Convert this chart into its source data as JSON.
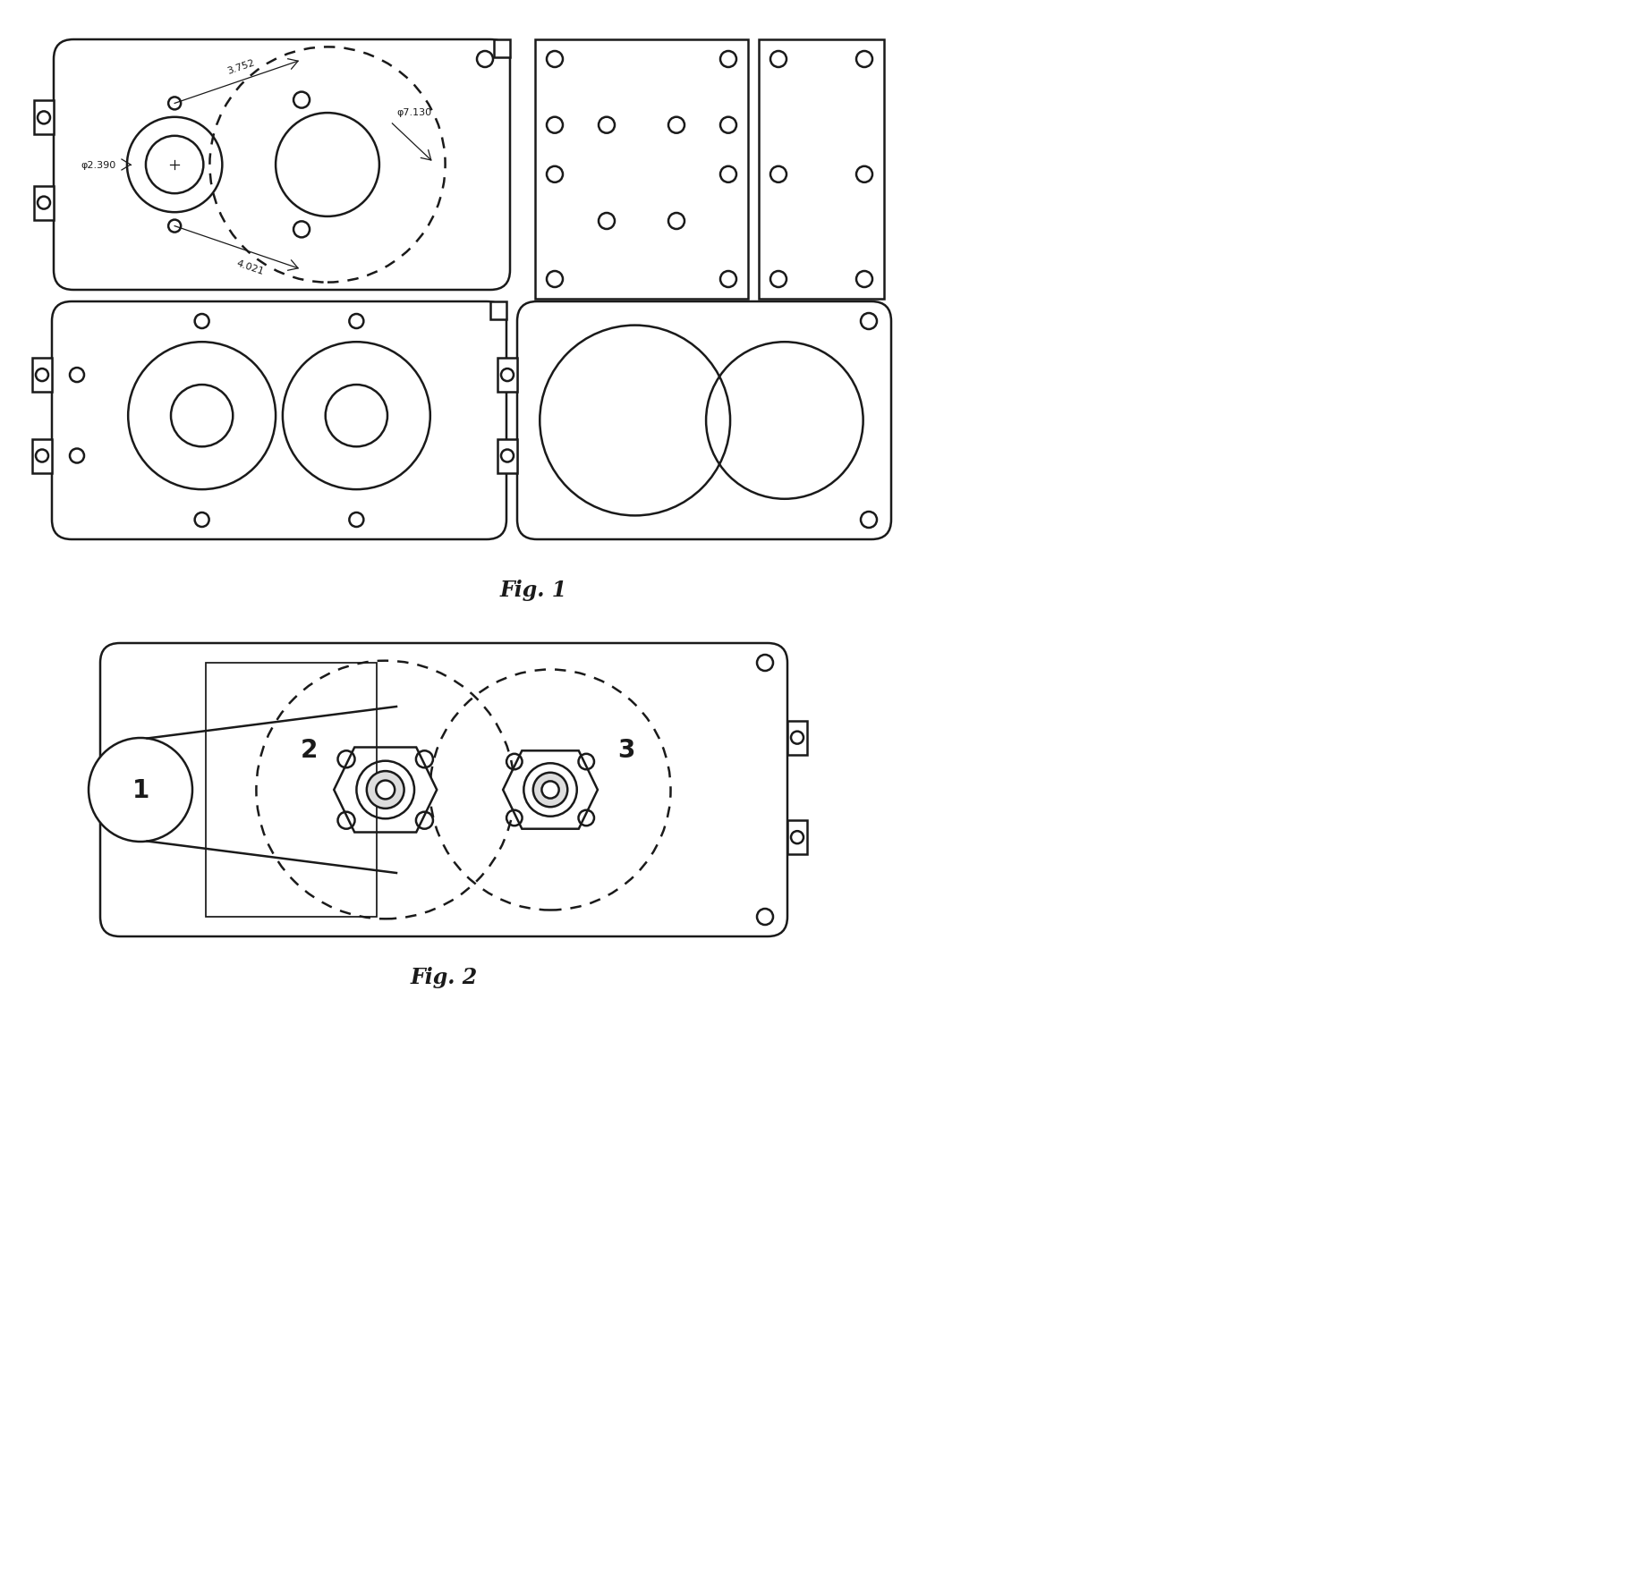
{
  "fig1_label": "Fig. 1",
  "fig2_label": "Fig. 2",
  "background": "#ffffff",
  "line_color": "#1a1a1a",
  "line_width": 1.8,
  "dim_3752": "3.752",
  "dim_2390": "φ2.390",
  "dim_4021": "4.021",
  "dim_7130": "φ7.130",
  "label1": "1",
  "label2": "2",
  "label3": "3"
}
